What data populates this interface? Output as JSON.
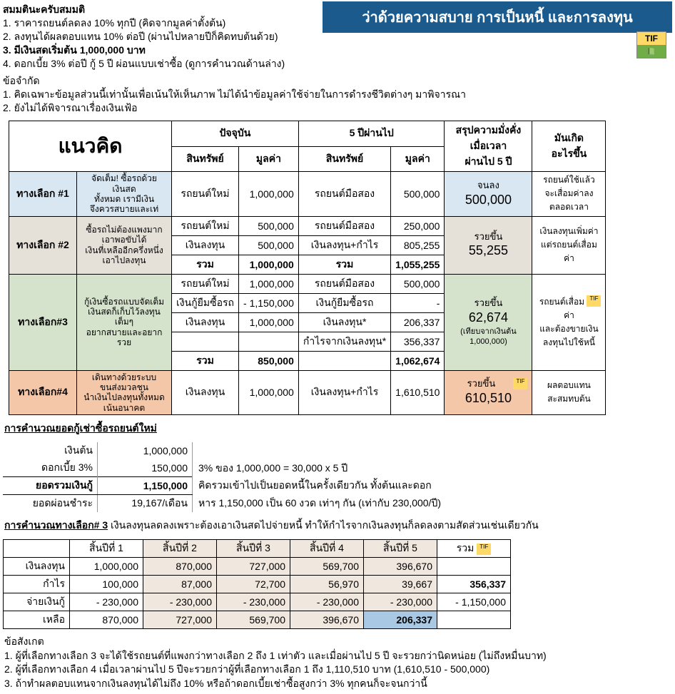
{
  "header": "ว่าด้วยความสบาย การเป็นหนี้ และการลงทุน",
  "tif": {
    "top": "TIF",
    "bot": ""
  },
  "assumptions_h": "สมมตินะครับสมมติ",
  "assumptions": [
    "1. ราคารถยนต์ลดลง 10% ทุกปี (คิดจากมูลค่าตั้งต้น)",
    "2. ลงทุนได้ผลตอบแทน 10% ต่อปี (ผ่านไปหลายปีก็คิดทบต้นด้วย)",
    "3. มีเงินสดเริ่มต้น 1,000,000 บาท",
    "4. ดอกเบี้ย 3% ต่อปี กู้ 5 ปี ผ่อนแบบเช่าซื้อ (ดูการคำนวณด้านล่าง)"
  ],
  "bold_idx": 2,
  "limits_h": "ข้อจำกัด",
  "limits": [
    "1. คิดเฉพาะข้อมูลส่วนนี้เท่านั้นเพื่อเน้นให้เห็นภาพ ไม่ได้นำข้อมูลค่าใช้จ่ายในการดำรงชีวิตต่างๆ มาพิจารณา",
    "2. ยังไม่ได้พิจารณาเรื่องเงินเฟ้อ"
  ],
  "main_headers": {
    "concept": "แนวคิด",
    "now": "ปัจจุบัน",
    "after5": "5 ปีผ่านไป",
    "wealth": "สรุปความมั่งคั่ง\nเมื่อเวลา\nผ่านไป 5 ปี",
    "what": "มันเกิด\nอะไรขึ้น",
    "asset": "สินทรัพย์",
    "value": "มูลค่า"
  },
  "options": {
    "o1": {
      "label": "ทางเลือก #1",
      "desc": "จัดเต็ม! ซื้อรถด้วยเงินสด\nทั้งหมด เรามีเงิน\nจึงควรสบายและเท่",
      "rows": [
        [
          "รถยนต์ใหม่",
          "1,000,000",
          "รถยนต์มือสอง",
          "500,000"
        ]
      ],
      "sum": {
        "t": "จนลง",
        "v": "500,000"
      },
      "what": "รถยนต์ใช้แล้ว\nจะเสื่อมค่าลง\nตลอดเวลา"
    },
    "o2": {
      "label": "ทางเลือก #2",
      "desc": "ซื้อรถไม่ต้องแพงมาก\nเอาพอขับได้\nเงินที่เหลืออีกครึ่งหนึ่ง\nเอาไปลงทุน",
      "rows": [
        [
          "รถยนต์ใหม่",
          "500,000",
          "รถยนต์มือสอง",
          "250,000"
        ],
        [
          "เงินลงทุน",
          "500,000",
          "เงินลงทุน+กำไร",
          "805,255"
        ],
        [
          "รวม",
          "1,000,000",
          "รวม",
          "1,055,255"
        ]
      ],
      "sum": {
        "t": "รวยขึ้น",
        "v": "55,255"
      },
      "what": "เงินลงทุนเพิ่มค่า\nแต่รถยนต์เสื่อมค่า"
    },
    "o3": {
      "label": "ทางเลือก#3",
      "desc": "กู้เงินซื้อรถแบบจัดเต็ม\nเงินสดก็เก็บไว้ลงทุนเต็มๆ\nอยากสบายและอยากรวย",
      "rows": [
        [
          "รถยนต์ใหม่",
          "1,000,000",
          "รถยนต์มือสอง",
          "500,000"
        ],
        [
          "เงินกู้ยืมซื้อรถ",
          "- 1,150,000",
          "เงินกู้ยืมซื้อรถ",
          "-"
        ],
        [
          "เงินลงทุน",
          "1,000,000",
          "เงินลงทุน*",
          "206,337"
        ],
        [
          "",
          "",
          "กำไรจากเงินลงทุน*",
          "356,337"
        ],
        [
          "รวม",
          "850,000",
          "",
          "1,062,674"
        ]
      ],
      "sum": {
        "t": "รวยขึ้น",
        "v": "62,674",
        "note": "(เทียบจากเงินต้น\n1,000,000)"
      },
      "what": "รถยนต์เสื่อมค่า\nและต้องขายเงิน\nลงทุนไปใช้หนี้"
    },
    "o4": {
      "label": "ทางเลือก#4",
      "desc": "เดินทางด้วยระบบ\nขนส่งมวลชน\nนำเงินไปลงทุนทั้งหมด\nเน้นอนาคต",
      "rows": [
        [
          "เงินลงทุน",
          "1,000,000",
          "เงินลงทุน+กำไร",
          "1,610,510"
        ]
      ],
      "sum": {
        "t": "รวยขึ้น",
        "v": "610,510"
      },
      "what": "ผลตอบแทน\nสะสมทบต้น"
    }
  },
  "loan_h": "การคำนวณยอดกู้เช่าซื้อรถยนต์ใหม่",
  "loan": [
    {
      "l": "เงินต้น",
      "v": "1,000,000",
      "n": ""
    },
    {
      "l": "ดอกเบี้ย 3%",
      "v": "150,000",
      "n": "3% ของ 1,000,000 = 30,000 x 5 ปี"
    },
    {
      "l": "ยอดรวมเงินกู้",
      "v": "1,150,000",
      "n": "คิดรวมเข้าไปเป็นยอดหนี้ในครั้งเดียวกัน ทั้งต้นและดอก",
      "total": true
    },
    {
      "l": "ยอดผ่อนชำระ",
      "v": "19,167/เดือน",
      "n": "หาร 1,150,000 เป็น 60 งวด เท่าๆ กัน (เท่ากับ 230,000/ปี)"
    }
  ],
  "calc3_h": "การคำนวณทางเลือก# 3",
  "calc3_sub": "เงินลงทุนลดลงเพราะต้องเอาเงินสดไปจ่ายหนี้ ทำให้กำไรจากเงินลงทุนก็ลดลงตามสัดส่วนเช่นเดียวกัน",
  "yr_headers": [
    "",
    "สิ้นปีที่ 1",
    "สิ้นปีที่ 2",
    "สิ้นปีที่ 3",
    "สิ้นปีที่ 4",
    "สิ้นปีที่ 5",
    "รวม"
  ],
  "yr_rows": [
    {
      "l": "เงินลงทุน",
      "c": [
        "1,000,000",
        "870,000",
        "727,000",
        "569,700",
        "396,670",
        ""
      ]
    },
    {
      "l": "กำไร",
      "c": [
        "100,000",
        "87,000",
        "72,700",
        "56,970",
        "39,667",
        "356,337"
      ]
    },
    {
      "l": "จ่ายเงินกู้",
      "c": [
        "- 230,000",
        "- 230,000",
        "- 230,000",
        "- 230,000",
        "- 230,000",
        "- 1,150,000"
      ]
    },
    {
      "l": "เหลือ",
      "c": [
        "870,000",
        "727,000",
        "569,700",
        "396,670",
        "206,337",
        ""
      ]
    }
  ],
  "observe_h": "ข้อสังเกต",
  "observe": [
    "1. ผู้ที่เลือกทางเลือก 3 จะได้ใช้รถยนต์ที่แพงกว่าทางเลือก 2 ถึง 1 เท่าตัว และเมื่อผ่านไป 5 ปี จะรวยกว่านิดหน่อย (ไม่ถึงหมื่นบาท)",
    "2. ผู้ที่เลือกทางเลือก 4  เมื่อเวลาผ่านไป 5 ปีจะรวยกว่าผู้ที่เลือกทางเลือก 1 ถึง 1,110,510 บาท (1,610,510 - 500,000)",
    "3. ถ้าทำผลตอบแทนจากเงินลงทุนได้ไม่ถึง 10% หรือถ้าดอกเบี้ยเช่าซื้อสูงกว่า 3% ทุกคนก็จะจนกว่านี้"
  ]
}
